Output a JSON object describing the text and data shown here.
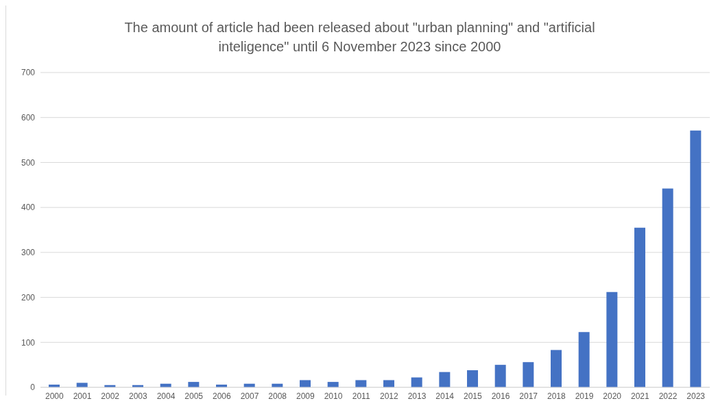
{
  "chart_data": {
    "type": "bar",
    "title": "The amount of article had been released about \"urban planning\" and \"artificial inteligence\" until 6 November 2023 since 2000",
    "categories": [
      "2000",
      "2001",
      "2002",
      "2003",
      "2004",
      "2005",
      "2006",
      "2007",
      "2008",
      "2009",
      "2010",
      "2011",
      "2012",
      "2013",
      "2014",
      "2015",
      "2016",
      "2017",
      "2018",
      "2019",
      "2020",
      "2021",
      "2022",
      "2023"
    ],
    "values": [
      6,
      10,
      5,
      5,
      8,
      12,
      6,
      8,
      8,
      16,
      12,
      16,
      16,
      22,
      34,
      38,
      50,
      56,
      83,
      123,
      212,
      355,
      442,
      571
    ],
    "color": "#4472c4",
    "ylim": [
      0,
      700
    ],
    "yticks": [
      0,
      100,
      200,
      300,
      400,
      500,
      600,
      700
    ],
    "grid": "y"
  }
}
